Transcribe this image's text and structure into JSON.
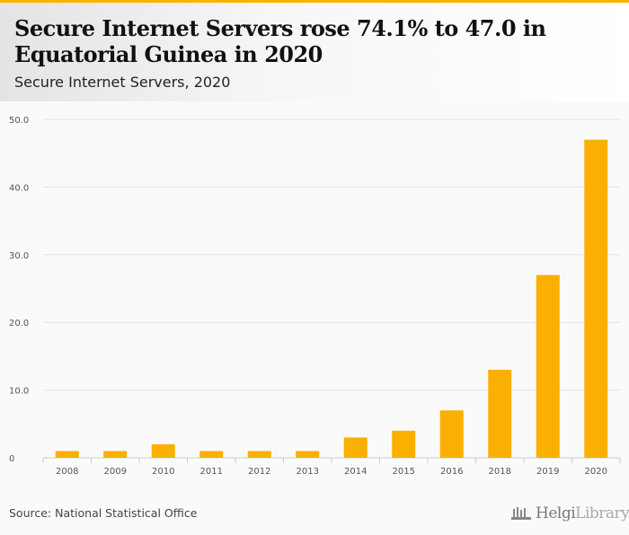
{
  "header": {
    "title": "Secure Internet Servers rose 74.1% to 47.0 in Equatorial Guinea in 2020",
    "subtitle": "Secure Internet Servers, 2020"
  },
  "footer": {
    "source": "Source: National Statistical Office",
    "logo_text_1": "Helgi",
    "logo_text_2": "Library."
  },
  "colors": {
    "bar": "#f9b000",
    "accent": "#f5b400"
  },
  "chart_data": {
    "type": "bar",
    "title": "Secure Internet Servers, 2020",
    "categories": [
      "2008",
      "2009",
      "2010",
      "2011",
      "2012",
      "2013",
      "2014",
      "2015",
      "2016",
      "2018",
      "2019",
      "2020"
    ],
    "values": [
      1,
      1,
      2,
      1,
      1,
      1,
      3,
      4,
      7,
      13,
      27,
      47
    ],
    "ylim": [
      0,
      50
    ],
    "yticks": [
      0,
      10,
      20,
      30,
      40,
      50
    ],
    "ytick_labels": [
      "0",
      "10.0",
      "20.0",
      "30.0",
      "40.0",
      "50.0"
    ],
    "xlabel": "",
    "ylabel": "",
    "grid": true
  }
}
